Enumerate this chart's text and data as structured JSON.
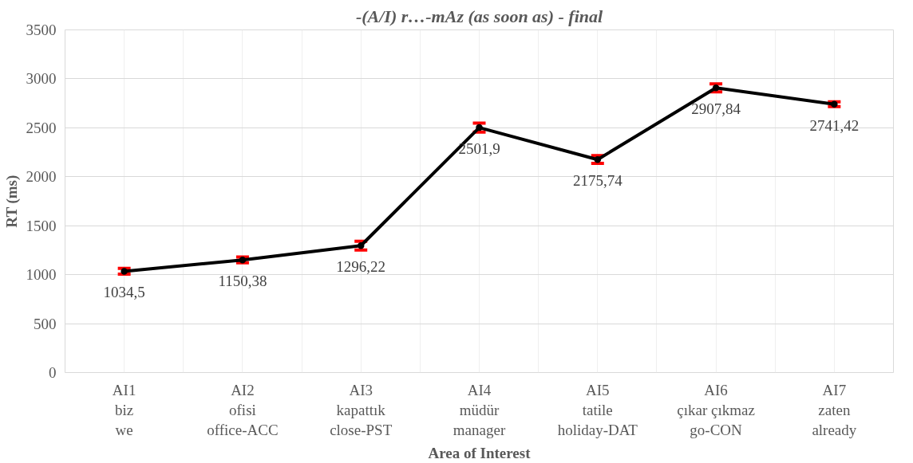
{
  "chart_data": {
    "type": "line",
    "title": "-(A/I) r…-mAz (as soon as) - final",
    "xlabel": "Area of Interest",
    "ylabel": "RT (ms)",
    "categories": [
      "AI1\nbiz\nwe",
      "AI2\nofisi\noffice-ACC",
      "AI3\nkapattık\nclose-PST",
      "AI4\nmüdür\nmanager",
      "AI5\ntatile\nholiday-DAT",
      "AI6\nçıkar çıkmaz\ngo-CON",
      "AI7\nzaten\nalready"
    ],
    "series": [
      {
        "color": "#000000",
        "values": [
          1034.5,
          1150.38,
          1296.22,
          2501.9,
          2175.74,
          2907.84,
          2741.42
        ],
        "errors": [
          30,
          30,
          45,
          45,
          40,
          40,
          25
        ],
        "value_labels": [
          "1034,5",
          "1150,38",
          "1296,22",
          "2501,9",
          "2175,74",
          "2907,84",
          "2741,42"
        ]
      }
    ],
    "ylim": [
      0,
      3500
    ],
    "yticks": [
      0,
      500,
      1000,
      1500,
      2000,
      2500,
      3000,
      3500
    ],
    "grid": true,
    "marker": "circle",
    "line_style": "solid"
  }
}
